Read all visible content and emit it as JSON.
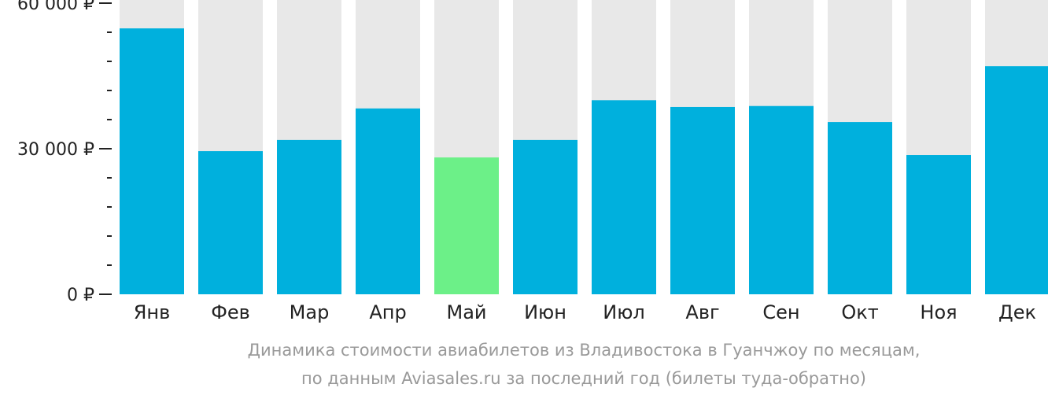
{
  "chart_data": {
    "type": "bar",
    "categories": [
      "Янв",
      "Фев",
      "Мар",
      "Апр",
      "Май",
      "Июн",
      "Июл",
      "Авг",
      "Сен",
      "Окт",
      "Ноя",
      "Дек"
    ],
    "values": [
      54800,
      29500,
      31800,
      38300,
      28200,
      31800,
      40000,
      38600,
      38800,
      35500,
      28700,
      47000
    ],
    "ylim": [
      0,
      60000
    ],
    "yticks": [
      {
        "value": 0,
        "label": "0 ₽"
      },
      {
        "value": 30000,
        "label": "30 000 ₽"
      },
      {
        "value": 60000,
        "label": "60 000 ₽"
      }
    ],
    "minor_tick_step": 6000,
    "highlight_index": 4,
    "colors": {
      "bar": "#00b0dd",
      "highlight": "#6cf088",
      "background_bar": "#e8e8e8",
      "axis_text": "#222222",
      "caption_text": "#999999"
    },
    "caption": [
      "Динамика стоимости авиабилетов из Владивостока в Гуанчжоу по месяцам,",
      "по данным Aviasales.ru за последний год (билеты туда-обратно)"
    ],
    "grid": false,
    "legend": "none"
  }
}
